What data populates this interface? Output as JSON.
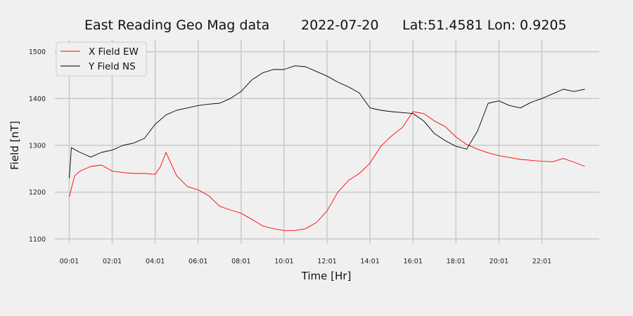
{
  "chart_data": {
    "type": "line",
    "title": {
      "station": "East Reading Geo Mag data",
      "date": "2022-07-20",
      "location": "Lat:51.4581  Lon: 0.9205"
    },
    "xlabel": "Time  [Hr]",
    "ylabel": "Field  [nT]",
    "xlim": [
      -0.67,
      24.67
    ],
    "ylim": [
      1090,
      1525
    ],
    "x_ticks": [
      {
        "value": 0,
        "label": "00:01"
      },
      {
        "value": 2,
        "label": "02:01"
      },
      {
        "value": 4,
        "label": "04:01"
      },
      {
        "value": 6,
        "label": "06:01"
      },
      {
        "value": 8,
        "label": "08:01"
      },
      {
        "value": 10,
        "label": "10:01"
      },
      {
        "value": 12,
        "label": "12:01"
      },
      {
        "value": 14,
        "label": "14:01"
      },
      {
        "value": 16,
        "label": "16:01"
      },
      {
        "value": 18,
        "label": "18:01"
      },
      {
        "value": 20,
        "label": "20:01"
      },
      {
        "value": 22,
        "label": "22:01"
      }
    ],
    "y_ticks": [
      1100,
      1200,
      1300,
      1400,
      1500
    ],
    "grid": true,
    "legend_position": "top-left",
    "series": [
      {
        "name": "X Field EW",
        "color": "#ff0000",
        "x": [
          0,
          0.25,
          0.5,
          1,
          1.5,
          2,
          2.5,
          3,
          3.5,
          4,
          4.25,
          4.5,
          4.75,
          5,
          5.5,
          6,
          6.5,
          7,
          7.5,
          8,
          8.5,
          9,
          9.5,
          10,
          10.5,
          11,
          11.5,
          12,
          12.5,
          13,
          13.5,
          14,
          14.5,
          15,
          15.5,
          16,
          16.5,
          17,
          17.5,
          18,
          18.5,
          19,
          19.5,
          20,
          20.5,
          21,
          21.5,
          22,
          22.5,
          23,
          23.5,
          24
        ],
        "y": [
          1190,
          1235,
          1245,
          1255,
          1258,
          1245,
          1242,
          1240,
          1240,
          1238,
          1255,
          1285,
          1260,
          1235,
          1212,
          1205,
          1192,
          1170,
          1162,
          1155,
          1142,
          1128,
          1122,
          1118,
          1118,
          1122,
          1135,
          1160,
          1200,
          1225,
          1240,
          1262,
          1298,
          1320,
          1338,
          1372,
          1368,
          1352,
          1340,
          1318,
          1302,
          1292,
          1284,
          1278,
          1274,
          1270,
          1268,
          1266,
          1265,
          1272,
          1264,
          1255
        ]
      },
      {
        "name": "Y Field NS",
        "color": "#000000",
        "x": [
          0,
          0.1,
          0.5,
          1,
          1.5,
          2,
          2.5,
          3,
          3.5,
          4,
          4.5,
          5,
          5.5,
          6,
          6.5,
          7,
          7.5,
          8,
          8.5,
          9,
          9.5,
          10,
          10.5,
          11,
          11.5,
          12,
          12.5,
          13,
          13.5,
          14,
          14.5,
          15,
          15.5,
          16,
          16.5,
          17,
          17.5,
          18,
          18.5,
          19,
          19.5,
          20,
          20.5,
          21,
          21.5,
          22,
          22.5,
          23,
          23.5,
          24
        ],
        "y": [
          1230,
          1295,
          1285,
          1275,
          1285,
          1290,
          1300,
          1305,
          1315,
          1345,
          1365,
          1375,
          1380,
          1385,
          1388,
          1390,
          1400,
          1415,
          1440,
          1455,
          1462,
          1462,
          1470,
          1468,
          1458,
          1448,
          1435,
          1425,
          1412,
          1380,
          1375,
          1372,
          1370,
          1368,
          1352,
          1325,
          1310,
          1298,
          1292,
          1330,
          1390,
          1395,
          1385,
          1380,
          1392,
          1400,
          1410,
          1420,
          1415,
          1420
        ]
      }
    ]
  }
}
